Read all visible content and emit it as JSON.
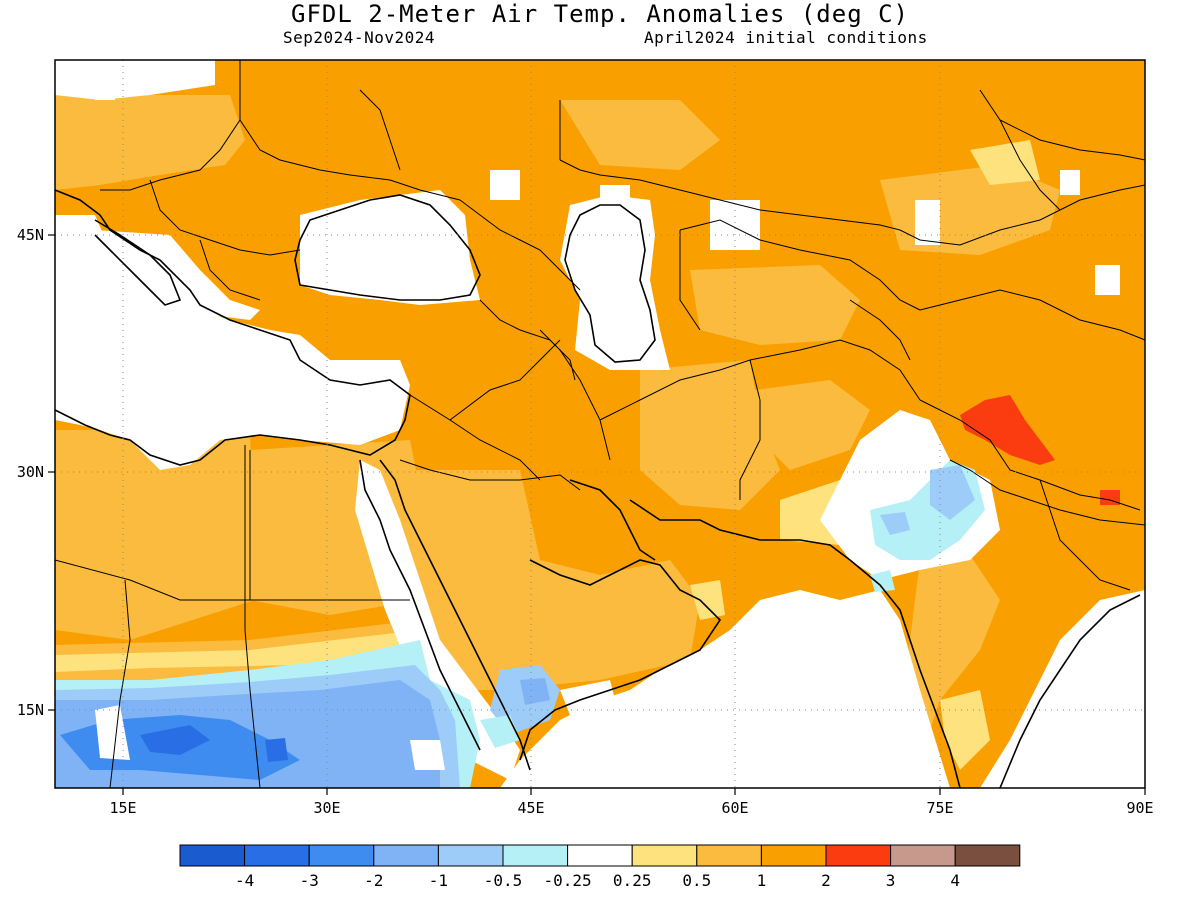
{
  "title": "GFDL 2-Meter Air Temp. Anomalies (deg C)",
  "subtitle_left": "Sep2024-Nov2024",
  "subtitle_right": "April2024 initial conditions",
  "lon_ticks": [
    "15E",
    "30E",
    "45E",
    "60E",
    "75E",
    "90E"
  ],
  "lat_ticks": [
    "45N",
    "30N",
    "15N"
  ],
  "colorbar": {
    "colors": [
      "#1a5ccf",
      "#2a6ee6",
      "#3f8cf0",
      "#7fb3f5",
      "#9dccf8",
      "#b4f0f5",
      "#ffffff",
      "#fde27e",
      "#fbbb3e",
      "#f9a000",
      "#fa3c10",
      "#c7998c",
      "#7a4f40"
    ],
    "labels": [
      "-4",
      "-3",
      "-2",
      "-1",
      "-0.5",
      "-0.25",
      "0.25",
      "0.5",
      "1",
      "2",
      "3",
      "4"
    ]
  },
  "palette": {
    "orange": "#f9a000",
    "light_orange": "#fbbb3e",
    "pale_yellow": "#fde27e",
    "red": "#fa3c10",
    "pale_blue": "#b4f0f5",
    "light_blue": "#9dccf8",
    "mid_blue": "#7fb3f5",
    "blue": "#3f8cf0",
    "deep_blue": "#2a6ee6"
  }
}
